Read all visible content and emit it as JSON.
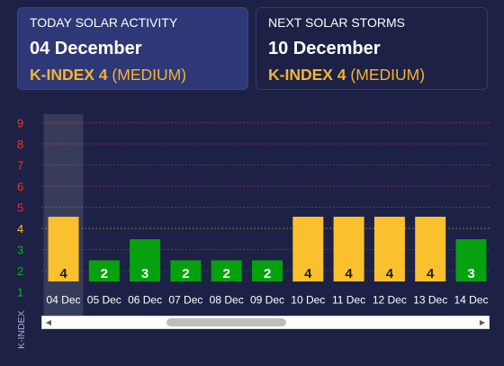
{
  "today": {
    "label": "TODAY SOLAR ACTIVITY",
    "date": "04 December",
    "kindex": "K-INDEX 4",
    "level": "(MEDIUM)"
  },
  "next": {
    "label": "NEXT SOLAR STORMS",
    "date": "10 December",
    "kindex": "K-INDEX 4",
    "level": "(MEDIUM)"
  },
  "colors": {
    "background": "#1d2145",
    "today_card": "#2f3877",
    "accent": "#f2b431",
    "high": "#fbc02d",
    "low": "#06a10f",
    "axis_red": "#ee3338",
    "axis_yellow": "#f7c324",
    "axis_green": "#12b11a"
  },
  "chart_data": {
    "type": "bar",
    "ylabel": "K-INDEX",
    "ylim": [
      1,
      9
    ],
    "yticks": [
      1,
      2,
      3,
      4,
      5,
      6,
      7,
      8,
      9
    ],
    "categories": [
      "04 Dec",
      "05 Dec",
      "06 Dec",
      "07 Dec",
      "08 Dec",
      "09 Dec",
      "10 Dec",
      "11 Dec",
      "12 Dec",
      "13 Dec",
      "14 Dec"
    ],
    "values": [
      4,
      2,
      3,
      2,
      2,
      2,
      4,
      4,
      4,
      4,
      3
    ],
    "selected": "04 Dec",
    "grid": true,
    "scrollbar": true
  }
}
